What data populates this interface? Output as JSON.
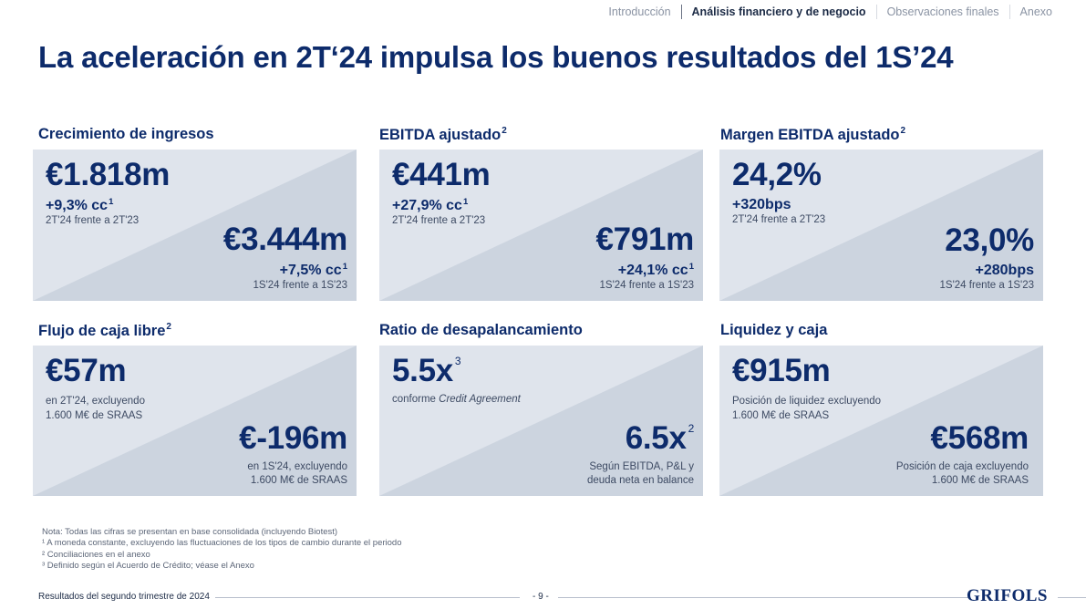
{
  "nav": {
    "items": [
      "Introducción",
      "Análisis financiero y de negocio",
      "Observaciones finales",
      "Anexo"
    ],
    "active_index": 1
  },
  "title": "La aceleración en 2T‘24 impulsa los buenos resultados del 1S’24",
  "cards": [
    {
      "title": "Crecimiento de ingresos",
      "title_sup": "",
      "top_value": "€1.818m",
      "top_value_sup": "",
      "top_change": "+9,3% cc",
      "top_change_sup": "1",
      "top_note": "2T'24 frente a 2T'23",
      "bottom_value": "€3.444m",
      "bottom_value_sup": "",
      "bottom_change": "+7,5% cc",
      "bottom_change_sup": "1",
      "bottom_note": "1S'24 frente a 1S'23"
    },
    {
      "title": "EBITDA ajustado",
      "title_sup": "2",
      "top_value": "€441m",
      "top_value_sup": "",
      "top_change": "+27,9% cc",
      "top_change_sup": "1",
      "top_note": "2T'24 frente a 2T'23",
      "bottom_value": "€791m",
      "bottom_value_sup": "",
      "bottom_change": "+24,1% cc",
      "bottom_change_sup": "1",
      "bottom_note": "1S'24 frente a 1S'23"
    },
    {
      "title": "Margen EBITDA ajustado",
      "title_sup": "2",
      "top_value": "24,2%",
      "top_value_sup": "",
      "top_change": "+320bps",
      "top_change_sup": "",
      "top_note": "2T'24 frente a 2T'23",
      "bottom_value": "23,0%",
      "bottom_value_sup": "",
      "bottom_change": "+280bps",
      "bottom_change_sup": "",
      "bottom_note": "1S'24 frente a 1S'23"
    },
    {
      "title": "Flujo de caja libre",
      "title_sup": "2",
      "top_value": "€57m",
      "top_value_sup": "",
      "top_change": "",
      "top_change_sup": "",
      "top_note": "en 2T'24, excluyendo\n1.600 M€ de SRAAS",
      "bottom_value": "€-196m",
      "bottom_value_sup": "",
      "bottom_change": "",
      "bottom_change_sup": "",
      "bottom_note": "en 1S'24, excluyendo\n1.600 M€ de SRAAS"
    },
    {
      "title": "Ratio de desapalancamiento",
      "title_sup": "",
      "top_value": "5.5x",
      "top_value_sup": "3",
      "top_change": "",
      "top_change_sup": "",
      "top_note_prefix": "conforme ",
      "top_note_italic": "Credit Agreement",
      "bottom_value": "6.5x",
      "bottom_value_sup": "2",
      "bottom_change": "",
      "bottom_change_sup": "",
      "bottom_note": "Según EBITDA, P&L y\ndeuda neta en balance"
    },
    {
      "title": "Liquidez y caja",
      "title_sup": "",
      "top_value": "€915m",
      "top_value_sup": "",
      "top_change": "",
      "top_change_sup": "",
      "top_note": "Posición de liquidez excluyendo\n1.600 M€ de SRAAS",
      "bottom_value": "€568m",
      "bottom_value_sup": "",
      "bottom_change": "",
      "bottom_change_sup": "",
      "bottom_note": "Posición de caja excluyendo\n1.600 M€ de SRAAS"
    }
  ],
  "notes": [
    "Nota: Todas las cifras se presentan en base consolidada (incluyendo Biotest)",
    "¹ A moneda constante, excluyendo las fluctuaciones de los tipos de cambio durante el periodo",
    "² Conciliaciones en el anexo",
    "³ Definido según el Acuerdo de Crédito; véase el Anexo"
  ],
  "footer": {
    "left": "Resultados del segundo trimestre de 2024",
    "page": "- 9 -",
    "logo": "GRIFOLS"
  },
  "colors": {
    "navy": "#0d2b6b",
    "card_bg": "#dfe4ec",
    "card_diagonal": "#ccd4df"
  }
}
